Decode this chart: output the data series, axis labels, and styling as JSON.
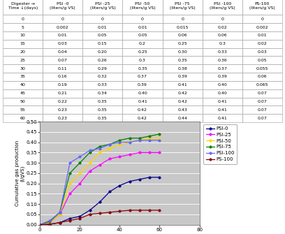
{
  "table_headers": [
    "Digester →\nTime ↓(days)",
    "PSI -0\n(liters/g VS)",
    "PSI -25\n(liters/g VS)",
    "PSI -50\n(liters/g VS)",
    "PSI -75\n(liters/g VS)",
    "PSI -100\n(liters/g VS)",
    "PS-100\n(liters/g VS)"
  ],
  "time": [
    0,
    5,
    10,
    15,
    20,
    25,
    30,
    35,
    40,
    45,
    50,
    55,
    60
  ],
  "PSI0": [
    0,
    0.002,
    0.01,
    0.03,
    0.04,
    0.07,
    0.11,
    0.16,
    0.19,
    0.21,
    0.22,
    0.23,
    0.23
  ],
  "PSI25": [
    0,
    0.01,
    0.05,
    0.15,
    0.2,
    0.26,
    0.29,
    0.32,
    0.33,
    0.34,
    0.35,
    0.35,
    0.35
  ],
  "PSI50": [
    0,
    0.01,
    0.05,
    0.2,
    0.25,
    0.3,
    0.35,
    0.37,
    0.39,
    0.4,
    0.41,
    0.42,
    0.42
  ],
  "PSI75": [
    0,
    0.015,
    0.06,
    0.25,
    0.3,
    0.35,
    0.38,
    0.39,
    0.41,
    0.42,
    0.42,
    0.43,
    0.44
  ],
  "PSI100": [
    0,
    0.02,
    0.06,
    0.3,
    0.33,
    0.36,
    0.37,
    0.39,
    0.4,
    0.4,
    0.41,
    0.41,
    0.41
  ],
  "PS100": [
    0,
    0.002,
    0.01,
    0.02,
    0.03,
    0.05,
    0.055,
    0.06,
    0.065,
    0.07,
    0.07,
    0.07,
    0.07
  ],
  "line_colors": {
    "PSI0": "#00008B",
    "PSI25": "#FF00FF",
    "PSI50": "#FFD700",
    "PSI75": "#008000",
    "PSI100": "#6666FF",
    "PS100": "#8B0000"
  },
  "legend_labels": [
    "PSI-0",
    "PSI-25",
    "PSI-50",
    "PSI-75",
    "PSI-100",
    "PS-100"
  ],
  "xlabel": "Digestion time (days)",
  "ylabel": "Cumulative gas production\n(l/gVS)",
  "ylim": [
    0,
    0.5
  ],
  "xlim": [
    0,
    80
  ],
  "yticks": [
    0,
    0.05,
    0.1,
    0.15,
    0.2,
    0.25,
    0.3,
    0.35,
    0.4,
    0.45,
    0.5
  ],
  "xticks": [
    0,
    20,
    40,
    60,
    80
  ],
  "table_row_data": [
    [
      "0",
      "0",
      "0",
      "0",
      "0",
      "0",
      "0"
    ],
    [
      "5",
      "0.002",
      "0.01",
      "0.01",
      "0.015",
      "0.02",
      "0.002"
    ],
    [
      "10",
      "0.01",
      "0.05",
      "0.05",
      "0.06",
      "0.06",
      "0.01"
    ],
    [
      "15",
      "0.03",
      "0.15",
      "0.2",
      "0.25",
      "0.3",
      "0.02"
    ],
    [
      "20",
      "0.04",
      "0.20",
      "0.25",
      "0.30",
      "0.33",
      "0.03"
    ],
    [
      "25",
      "0.07",
      "0.26",
      "0.3",
      "0.35",
      "0.36",
      "0.05"
    ],
    [
      "30",
      "0.11",
      "0.29",
      "0.35",
      "0.38",
      "0.37",
      "0.055"
    ],
    [
      "35",
      "0.16",
      "0.32",
      "0.37",
      "0.39",
      "0.39",
      "0.06"
    ],
    [
      "40",
      "0.19",
      "0.33",
      "0.39",
      "0.41",
      "0.40",
      "0.065"
    ],
    [
      "45",
      "0.21",
      "0.34",
      "0.40",
      "0.42",
      "0.40",
      "0.07"
    ],
    [
      "50",
      "0.22",
      "0.35",
      "0.41",
      "0.42",
      "0.41",
      "0.07"
    ],
    [
      "55",
      "0.23",
      "0.35",
      "0.42",
      "0.43",
      "0.41",
      "0.07"
    ],
    [
      "60",
      "0.23",
      "0.35",
      "0.42",
      "0.44",
      "0.41",
      "0.07"
    ]
  ]
}
